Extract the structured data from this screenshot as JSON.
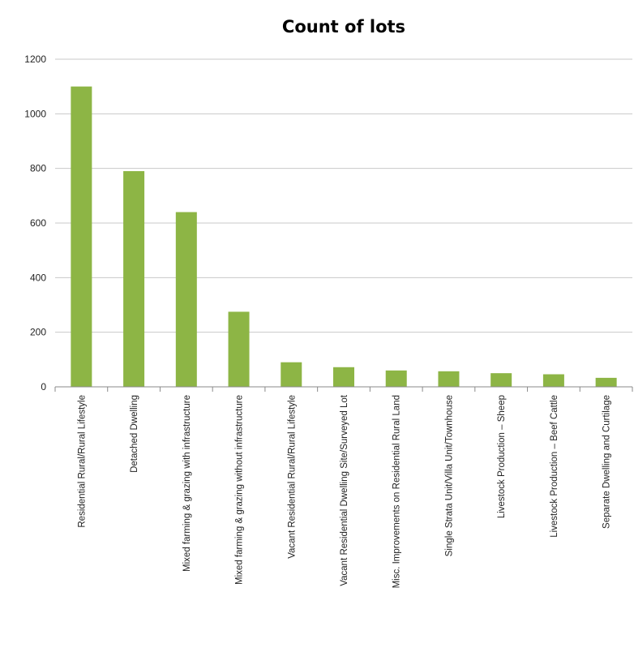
{
  "chart_data": {
    "type": "bar",
    "title": "Count of lots",
    "xlabel": "",
    "ylabel": "",
    "ylim": [
      0,
      1200
    ],
    "yticks": [
      0,
      200,
      400,
      600,
      800,
      1000,
      1200
    ],
    "grid": true,
    "categories": [
      "Residential Rural/Rural Lifestyle",
      "Detached Dwelling",
      "Mixed farming & grazing with infrastructure",
      "Mixed farming & grazing without infrastructure",
      "Vacant Residential Rural/Rural Lifestyle",
      "Vacant Residential Dwelling Site/Surveyed Lot",
      "Misc. Improvements on Residential Rural Land",
      "Single Strata Unit/Villa Unit/Townhouse",
      "Livestock Production – Sheep",
      "Livestock Production – Beef Cattle",
      "Separate Dwelling and Curtilage"
    ],
    "values": [
      1100,
      790,
      640,
      275,
      90,
      72,
      60,
      57,
      50,
      46,
      33
    ],
    "colors": {
      "bar": "#8db545",
      "gridline": "#c8c8c8",
      "axis": "#8a8a8a"
    }
  }
}
